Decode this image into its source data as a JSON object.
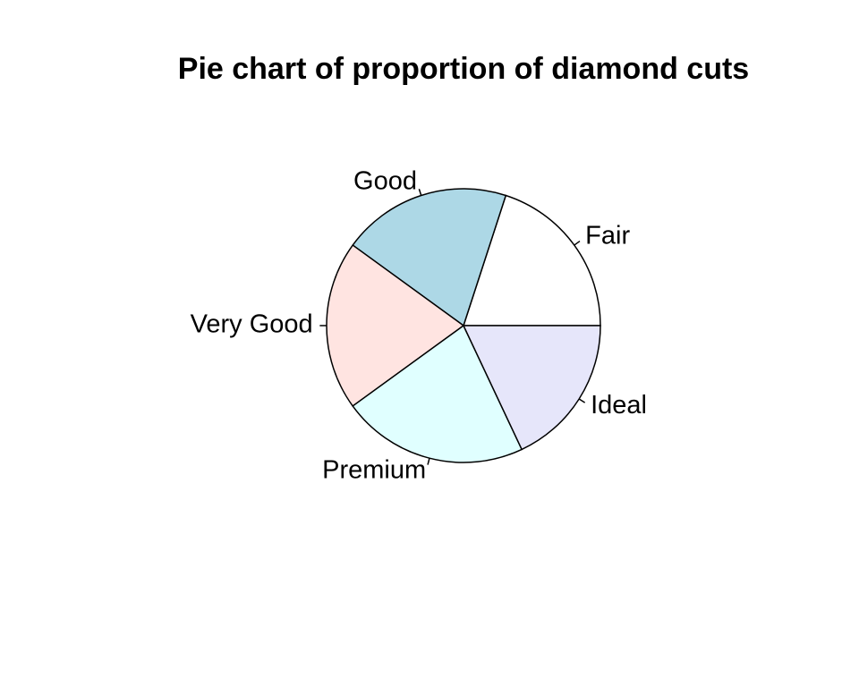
{
  "chart_data": {
    "type": "pie",
    "title": "Pie chart of proportion of diamond cuts",
    "categories": [
      "Fair",
      "Good",
      "Very Good",
      "Premium",
      "Ideal"
    ],
    "values": [
      0.2,
      0.2,
      0.2,
      0.22,
      0.18
    ],
    "colors": [
      "#FFFFFF",
      "#ADD8E6",
      "#FFE4E1",
      "#E0FFFF",
      "#E6E6FA"
    ],
    "start_angle_deg": 0,
    "direction": "counterclockwise",
    "legend": "none"
  }
}
